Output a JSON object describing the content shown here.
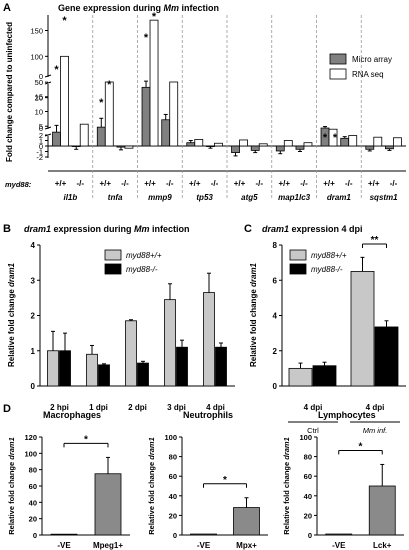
{
  "panels": {
    "A": {
      "letter": "A",
      "title_prefix": "Gene expression during ",
      "title_italic": "Mm",
      "title_suffix": " infection"
    },
    "B": {
      "letter": "B",
      "title_italic1": "dram1",
      "title_mid": " expression during ",
      "title_italic2": "Mm",
      "title_suffix": " infection"
    },
    "C": {
      "letter": "C",
      "title_italic": "dram1",
      "title_suffix": " expression 4 dpi"
    },
    "D": {
      "letter": "D"
    }
  },
  "colors": {
    "micro_array": "#808080",
    "rna_seq": "#ffffff",
    "wt_bar": "#c8c8c8",
    "mut_bar": "#000000",
    "bar_D": "#8a8a8a"
  },
  "chart_data": [
    {
      "id": "A",
      "type": "bar",
      "ylabel": "Fold change compared to uninfected",
      "genotype_label": "myd88:",
      "genes": [
        "il1b",
        "tnfa",
        "mmp9",
        "tp53",
        "atg5",
        "map1lc3",
        "dram1",
        "sqstm1"
      ],
      "genotypes": [
        "+/+",
        "-/-"
      ],
      "series": [
        {
          "name": "Micro array",
          "values": [
            [
              3.0,
              -0.1
            ],
            [
              4.7,
              -0.2
            ],
            [
              40,
              7.2
            ],
            [
              0.6,
              -0.1
            ],
            [
              -1.2,
              -0.8
            ],
            [
              -0.9,
              -0.6
            ],
            [
              4.4,
              1.4
            ],
            [
              -0.6,
              -0.5
            ]
          ],
          "errors": [
            [
              2.3,
              0.5
            ],
            [
              3.0,
              0.5
            ],
            [
              12,
              1.8
            ],
            [
              0.4,
              0.3
            ],
            [
              0.6,
              0.4
            ],
            [
              0.5,
              0.4
            ],
            [
              0.5,
              0.3
            ],
            [
              0.3,
              0.3
            ]
          ]
        },
        {
          "name": "RNA seq",
          "values": [
            [
              100,
              5.7
            ],
            [
              20,
              -0.4
            ],
            [
              170,
              20
            ],
            [
              1.2,
              0.5
            ],
            [
              1.1,
              0.4
            ],
            [
              1.0,
              0.6
            ],
            [
              4.0,
              1.9
            ],
            [
              1.6,
              1.5
            ]
          ]
        }
      ],
      "yticks_top": [
        "150",
        "100",
        "50",
        "0"
      ],
      "yticks_mid": [
        "20",
        "15",
        "10",
        "5",
        "0"
      ],
      "yticks_low": [
        "2",
        "1",
        "0",
        "-1",
        "-2"
      ],
      "significance": [
        "*",
        "*",
        "*",
        "*",
        "*",
        "*",
        "*"
      ]
    },
    {
      "id": "B",
      "type": "bar",
      "ylabel": "Relative fold change dram1",
      "categories": [
        "2 hpi",
        "1 dpi",
        "2 dpi",
        "3 dpi",
        "4 dpi"
      ],
      "series": [
        {
          "name": "myd88+/+",
          "values": [
            1.0,
            0.9,
            1.85,
            2.45,
            2.65
          ],
          "errors": [
            0.55,
            0.25,
            0.03,
            0.45,
            0.55
          ]
        },
        {
          "name": "myd88-/-",
          "values": [
            1.0,
            0.6,
            0.65,
            1.1,
            1.1
          ],
          "errors": [
            0.5,
            0.03,
            0.05,
            0.2,
            0.12
          ]
        }
      ],
      "ylim": [
        0,
        4
      ],
      "yticks": [
        "4",
        "3",
        "2",
        "1",
        "0"
      ]
    },
    {
      "id": "C",
      "type": "bar",
      "ylabel": "Relative fold change dram1",
      "categories": [
        "4 dpi",
        "4 dpi"
      ],
      "groups": [
        "Ctrl",
        "Mm inf."
      ],
      "series": [
        {
          "name": "myd88+/+",
          "values": [
            1.0,
            6.5
          ],
          "errors": [
            0.3,
            0.8
          ]
        },
        {
          "name": "myd88-/-",
          "values": [
            1.15,
            3.35
          ],
          "errors": [
            0.2,
            0.35
          ]
        }
      ],
      "ylim": [
        0,
        8
      ],
      "yticks": [
        "8",
        "6",
        "4",
        "2",
        "0"
      ],
      "significance": "**"
    },
    {
      "id": "D1",
      "type": "bar",
      "title": "Macrophages",
      "ylabel": "Relative fold change dram1",
      "categories": [
        "-VE",
        "Mpeg1+"
      ],
      "values": [
        1,
        75
      ],
      "errors": [
        0,
        20
      ],
      "ylim": [
        0,
        120
      ],
      "yticks": [
        "120",
        "100",
        "80",
        "60",
        "40",
        "20",
        "0"
      ],
      "significance": "*"
    },
    {
      "id": "D2",
      "type": "bar",
      "title": "Neutrophils",
      "ylabel": "Relative fold change dram1",
      "categories": [
        "-VE",
        "Mpx+"
      ],
      "values": [
        1,
        28
      ],
      "errors": [
        0,
        10
      ],
      "ylim": [
        0,
        100
      ],
      "yticks": [
        "100",
        "80",
        "60",
        "40",
        "20",
        "0"
      ],
      "significance": "*"
    },
    {
      "id": "D3",
      "type": "bar",
      "title": "Lymphocytes",
      "ylabel": "Relative fold change dram1",
      "categories": [
        "-VE",
        "Lck+"
      ],
      "values": [
        1,
        50
      ],
      "errors": [
        0,
        22
      ],
      "ylim": [
        0,
        100
      ],
      "yticks": [
        "100",
        "80",
        "60",
        "40",
        "20",
        "0"
      ],
      "significance": "*"
    }
  ]
}
